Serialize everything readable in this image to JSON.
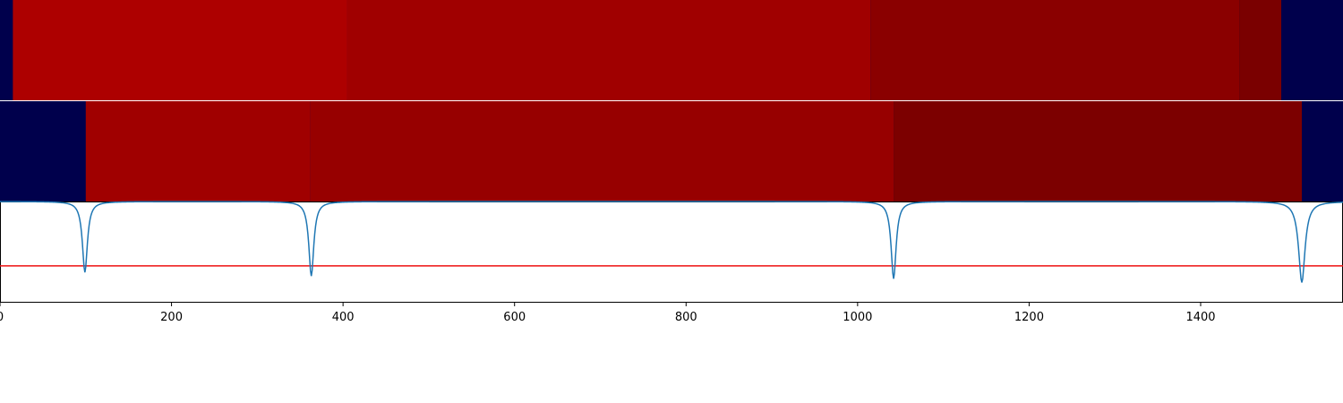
{
  "chart_data": {
    "type": "heatmap",
    "xlim": [
      0,
      1566
    ],
    "x_ticks": [
      0,
      200,
      400,
      600,
      800,
      1000,
      1200,
      1400
    ],
    "x_tick_labels": [
      "0",
      "200",
      "400",
      "600",
      "800",
      "1000",
      "1200",
      "1400"
    ],
    "grid": false,
    "legend": "none",
    "background_color": "#00004c",
    "segment_tracks": [
      {
        "segments": [
          {
            "start": 15,
            "end": 405,
            "color": "#ad0000"
          },
          {
            "start": 405,
            "end": 1015,
            "color": "#a00000"
          },
          {
            "start": 1015,
            "end": 1445,
            "color": "#8a0000"
          },
          {
            "start": 1445,
            "end": 1494,
            "color": "#7a0000"
          }
        ]
      },
      {
        "segments": [
          {
            "start": 100,
            "end": 362,
            "color": "#a00000"
          },
          {
            "start": 362,
            "end": 1042,
            "color": "#970000"
          },
          {
            "start": 1042,
            "end": 1518,
            "color": "#7c0000"
          }
        ]
      }
    ],
    "signal": {
      "color": "#1f77b4",
      "baseline": 1.0,
      "dips": [
        {
          "x": 99,
          "depth": 0.77,
          "width": 3.5
        },
        {
          "x": 363,
          "depth": 0.81,
          "width": 3.5
        },
        {
          "x": 1042,
          "depth": 0.84,
          "width": 3.5
        },
        {
          "x": 1518,
          "depth": 0.88,
          "width": 4.5
        }
      ],
      "ylim": [
        -0.1,
        1.0
      ]
    },
    "threshold": {
      "value": 0.3,
      "color": "#ee1111"
    }
  }
}
